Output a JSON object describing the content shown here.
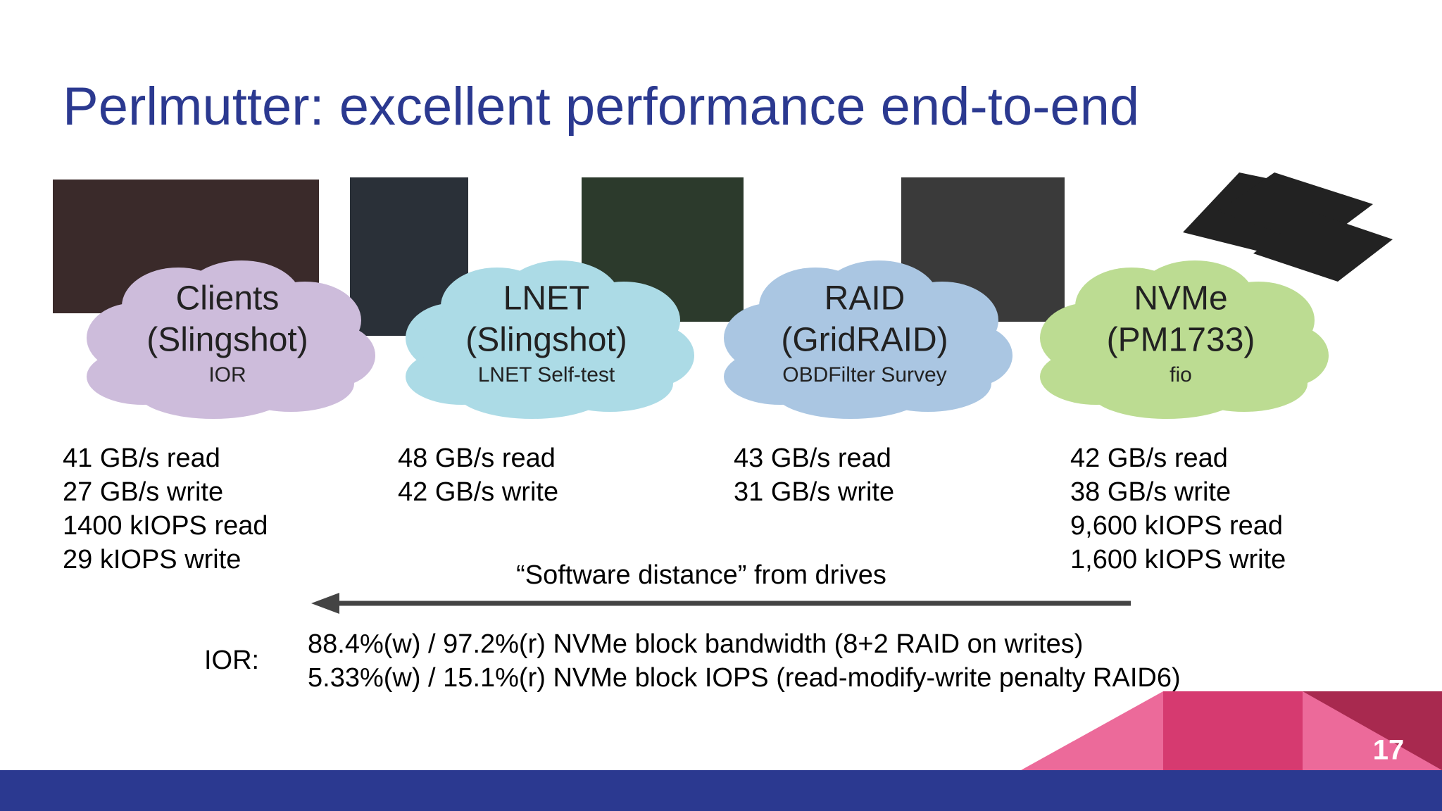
{
  "header": {
    "title": "Perlmutter: excellent performance end-to-end"
  },
  "columns": [
    {
      "title": [
        "Clients",
        "(Slingshot)"
      ],
      "tool": "IOR",
      "stats": [
        "41 GB/s read",
        "27 GB/s write",
        "1400 kIOPS read",
        "29 kIOPS write"
      ]
    },
    {
      "title": [
        "LNET",
        "(Slingshot)"
      ],
      "tool": "LNET Self-test",
      "stats": [
        "48 GB/s read",
        "42 GB/s write"
      ]
    },
    {
      "title": [
        "RAID",
        "(GridRAID)"
      ],
      "tool": "OBDFilter Survey",
      "stats": [
        "43 GB/s read",
        "31 GB/s write"
      ]
    },
    {
      "title": [
        "NVMe",
        "(PM1733)"
      ],
      "tool": "fio",
      "stats": [
        "42 GB/s read",
        "38 GB/s write",
        "9,600 kIOPS read",
        "1,600 kIOPS write"
      ]
    }
  ],
  "arrow": {
    "label": "“Software distance” from drives"
  },
  "ior": {
    "label": "IOR:",
    "notes": [
      "88.4%(w) / 97.2%(r) NVMe block bandwidth (8+2 RAID on writes)",
      "5.33%(w) / 15.1%(r) NVMe block IOPS (read-modify-write penalty RAID6)"
    ]
  },
  "footer": {
    "page": "17"
  }
}
